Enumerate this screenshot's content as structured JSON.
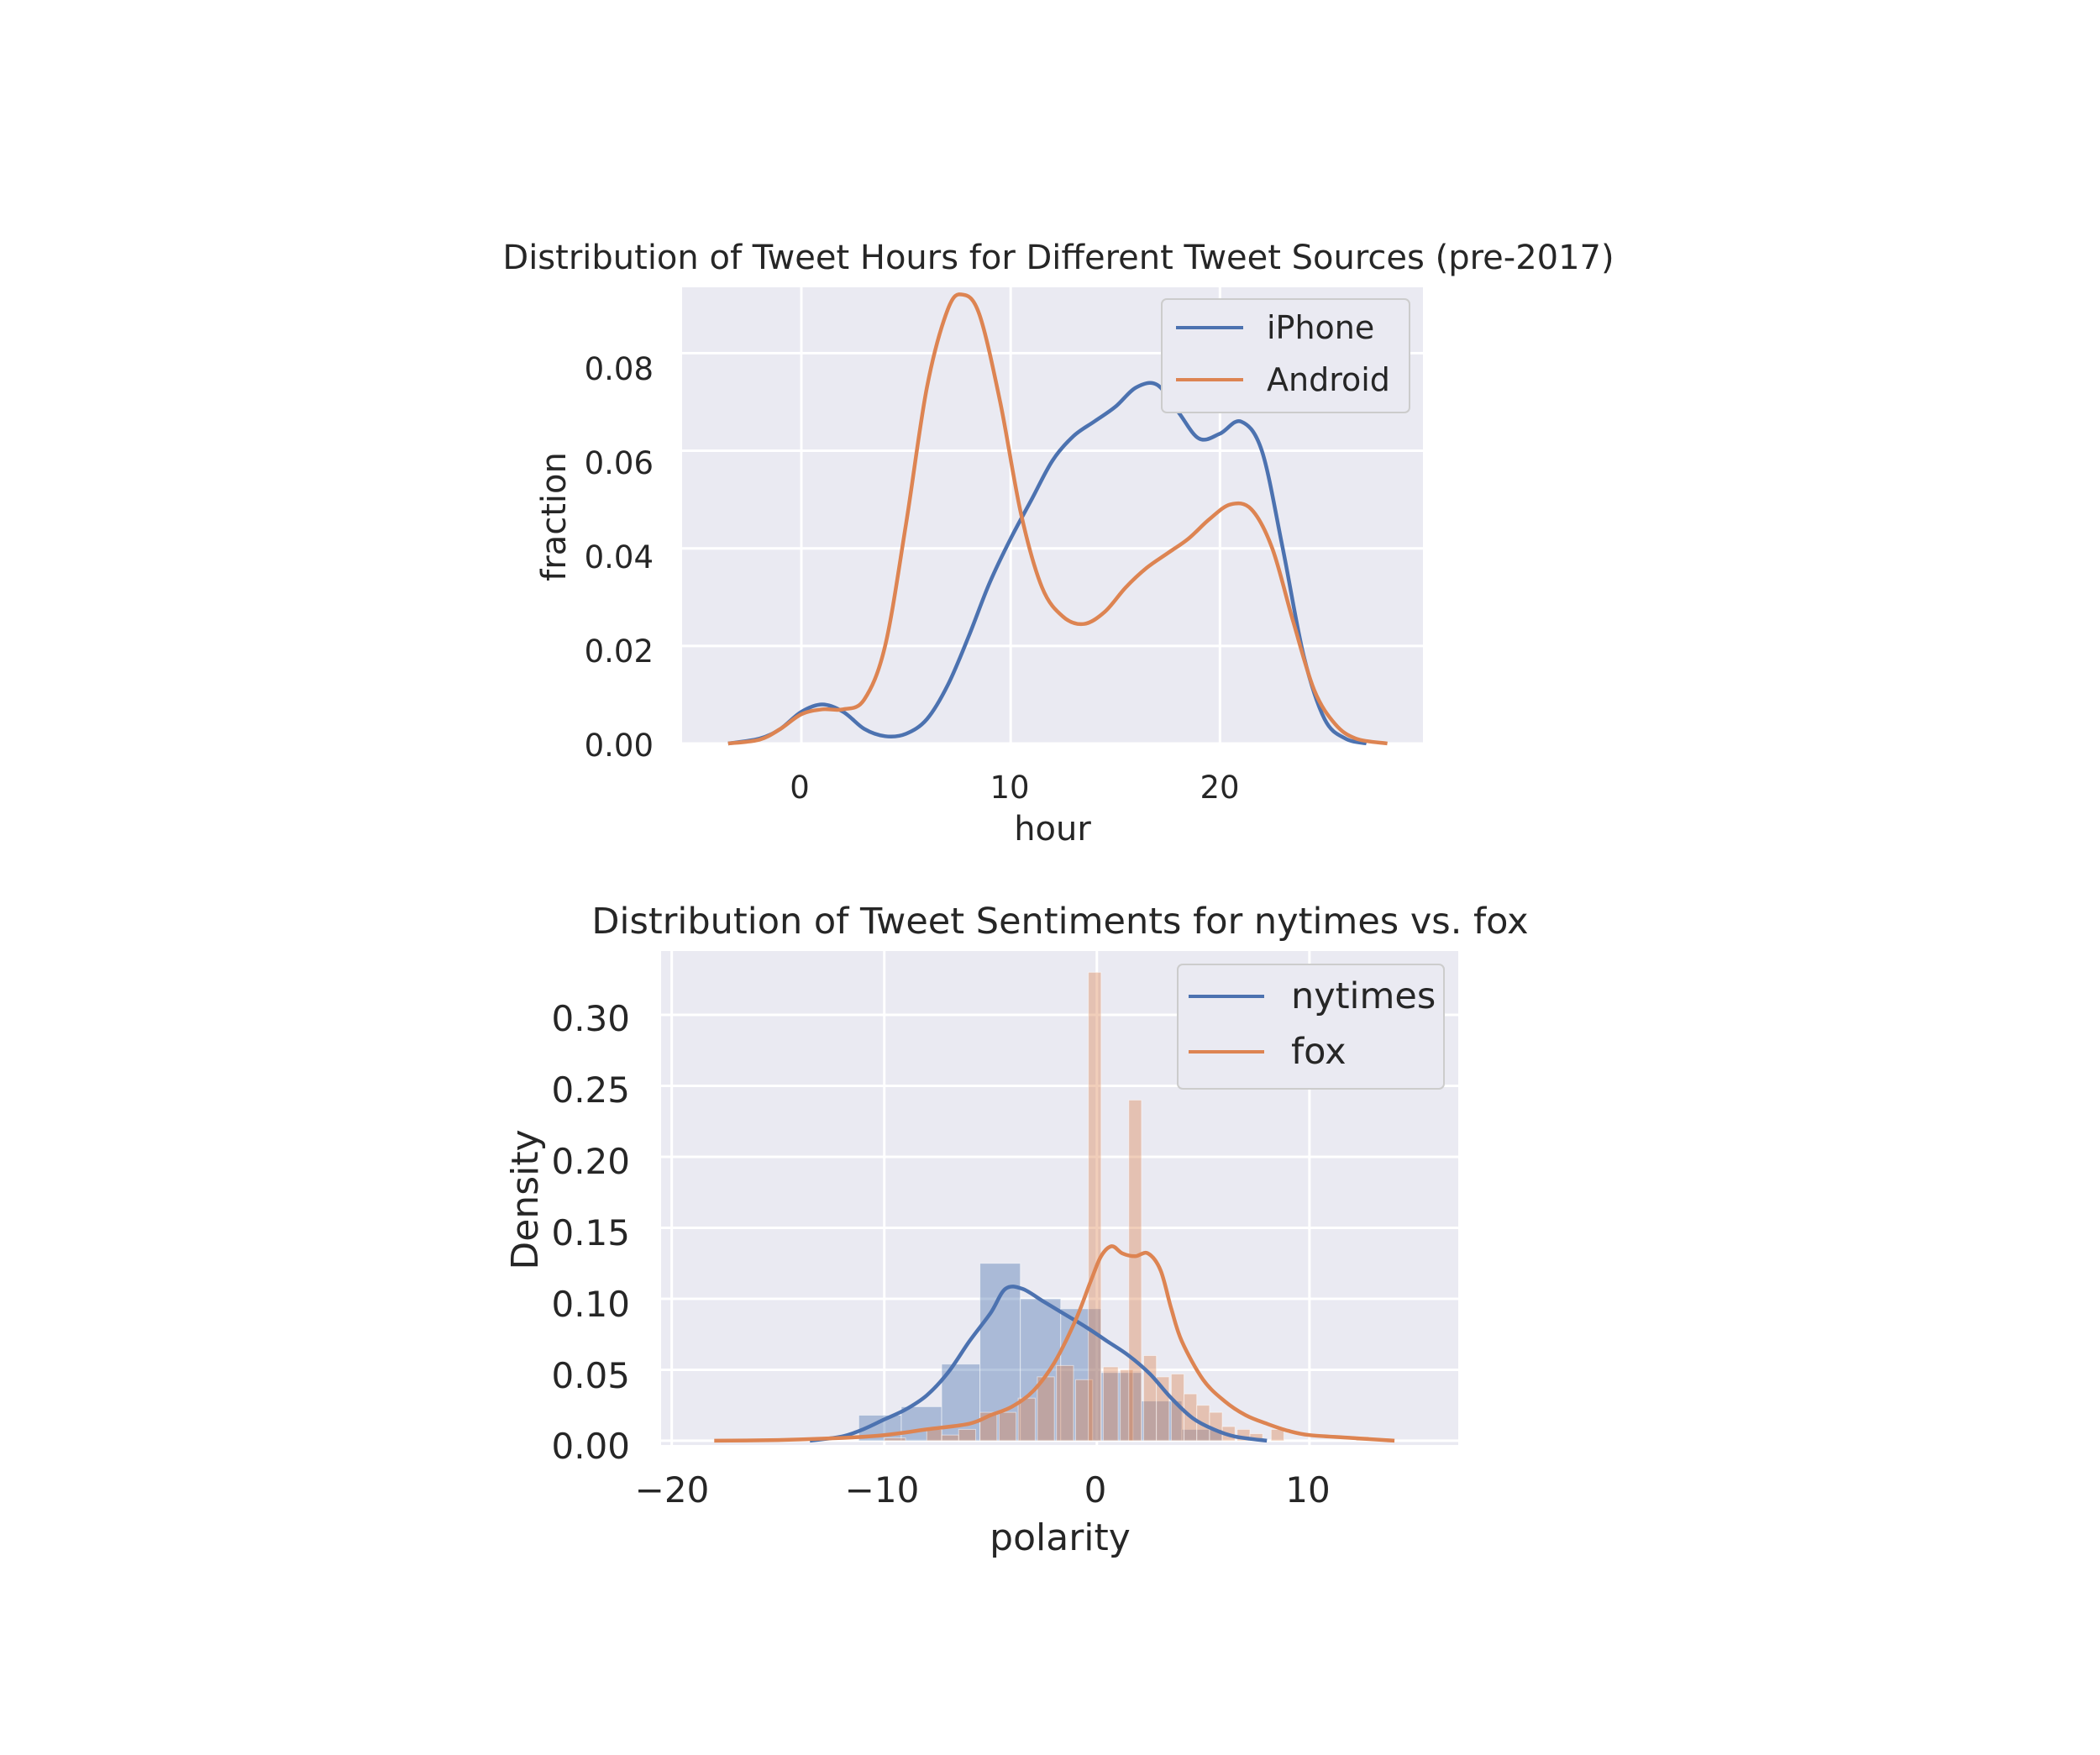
{
  "colors": {
    "background": "#ffffff",
    "axes_face": "#eaeaf2",
    "grid": "#ffffff",
    "blue": "#4c72b0",
    "orange": "#dd8452",
    "text": "#262626"
  },
  "chart_data": [
    {
      "type": "line",
      "title": "Distribution of Tweet Hours for Different Tweet Sources (pre-2017)",
      "xlabel": "hour",
      "ylabel": "fraction",
      "xlim": [
        -5.7,
        29.7
      ],
      "ylim": [
        0,
        0.0935
      ],
      "xticks": [
        0,
        10,
        20
      ],
      "xtick_labels": [
        "0",
        "10",
        "20"
      ],
      "yticks": [
        0,
        0.02,
        0.04,
        0.06,
        0.08
      ],
      "ytick_labels": [
        "0.00",
        "0.02",
        "0.04",
        "0.06",
        "0.08"
      ],
      "grid": true,
      "legend_position": "top-right",
      "series": [
        {
          "name": "iPhone",
          "color": "#4c72b0",
          "points": [
            [
              -3.5,
              0.0
            ],
            [
              -2,
              0.001
            ],
            [
              -1,
              0.003
            ],
            [
              0,
              0.0065
            ],
            [
              1,
              0.008
            ],
            [
              2,
              0.0065
            ],
            [
              3,
              0.003
            ],
            [
              4,
              0.0015
            ],
            [
              5,
              0.002
            ],
            [
              6,
              0.005
            ],
            [
              7,
              0.012
            ],
            [
              8,
              0.022
            ],
            [
              9,
              0.033
            ],
            [
              10,
              0.042
            ],
            [
              11,
              0.05
            ],
            [
              12,
              0.058
            ],
            [
              13,
              0.063
            ],
            [
              14,
              0.066
            ],
            [
              15,
              0.069
            ],
            [
              16,
              0.073
            ],
            [
              17,
              0.0735
            ],
            [
              18,
              0.068
            ],
            [
              19,
              0.0625
            ],
            [
              20,
              0.0635
            ],
            [
              21,
              0.066
            ],
            [
              22,
              0.06
            ],
            [
              23,
              0.04
            ],
            [
              24,
              0.018
            ],
            [
              25,
              0.005
            ],
            [
              26,
              0.001
            ],
            [
              27,
              0.0
            ]
          ]
        },
        {
          "name": "Android",
          "color": "#dd8452",
          "points": [
            [
              -3.5,
              0.0
            ],
            [
              -2,
              0.0008
            ],
            [
              -1,
              0.003
            ],
            [
              0,
              0.006
            ],
            [
              1,
              0.007
            ],
            [
              2,
              0.007
            ],
            [
              3,
              0.009
            ],
            [
              4,
              0.02
            ],
            [
              5,
              0.045
            ],
            [
              6,
              0.073
            ],
            [
              7,
              0.089
            ],
            [
              7.7,
              0.092
            ],
            [
              8.5,
              0.088
            ],
            [
              9.5,
              0.07
            ],
            [
              10.5,
              0.047
            ],
            [
              11.5,
              0.032
            ],
            [
              12.5,
              0.026
            ],
            [
              13.5,
              0.0245
            ],
            [
              14.5,
              0.027
            ],
            [
              15.5,
              0.032
            ],
            [
              16.5,
              0.036
            ],
            [
              17.5,
              0.039
            ],
            [
              18.5,
              0.042
            ],
            [
              19.5,
              0.046
            ],
            [
              20.5,
              0.049
            ],
            [
              21.5,
              0.048
            ],
            [
              22.5,
              0.04
            ],
            [
              23.5,
              0.025
            ],
            [
              24.5,
              0.011
            ],
            [
              25.5,
              0.004
            ],
            [
              26.5,
              0.001
            ],
            [
              28,
              0.0
            ]
          ]
        }
      ]
    },
    {
      "type": "histogram+kde",
      "title": "Distribution of Tweet Sentiments for nytimes vs. fox",
      "xlabel": "polarity",
      "ylabel": "Density",
      "xlim": [
        -20.5,
        17
      ],
      "ylim": [
        -0.003,
        0.345
      ],
      "xticks": [
        -20,
        -10,
        0,
        10
      ],
      "xtick_labels": [
        "−20",
        "−10",
        "0",
        "10"
      ],
      "yticks": [
        0,
        0.05,
        0.1,
        0.15,
        0.2,
        0.25,
        0.3
      ],
      "ytick_labels": [
        "0.00",
        "0.05",
        "0.10",
        "0.15",
        "0.20",
        "0.25",
        "0.30"
      ],
      "grid": true,
      "legend_position": "top-right",
      "histograms": [
        {
          "name": "nytimes",
          "color": "#4c72b0",
          "bars": [
            [
              -11.2,
              -9.2,
              0.018
            ],
            [
              -9.2,
              -7.3,
              0.024
            ],
            [
              -7.3,
              -5.5,
              0.054
            ],
            [
              -5.5,
              -3.6,
              0.125
            ],
            [
              -3.6,
              -1.7,
              0.1
            ],
            [
              -1.7,
              0.2,
              0.093
            ],
            [
              0.2,
              2.1,
              0.048
            ],
            [
              2.1,
              4.0,
              0.028
            ],
            [
              4.0,
              5.9,
              0.008
            ]
          ]
        },
        {
          "name": "fox",
          "color": "#dd8452",
          "bars": [
            [
              -10.0,
              -9.0,
              0.002
            ],
            [
              -8.0,
              -7.3,
              0.008
            ],
            [
              -7.3,
              -6.5,
              0.004
            ],
            [
              -6.5,
              -5.7,
              0.008
            ],
            [
              -5.5,
              -4.7,
              0.02
            ],
            [
              -4.6,
              -3.8,
              0.02
            ],
            [
              -3.7,
              -2.9,
              0.03
            ],
            [
              -2.8,
              -2.0,
              0.045
            ],
            [
              -1.9,
              -1.1,
              0.053
            ],
            [
              -1.0,
              -0.2,
              0.043
            ],
            [
              -0.4,
              0.2,
              0.33
            ],
            [
              0.3,
              1.0,
              0.052
            ],
            [
              1.1,
              1.7,
              0.05
            ],
            [
              1.5,
              2.1,
              0.24
            ],
            [
              2.2,
              2.8,
              0.06
            ],
            [
              2.8,
              3.4,
              0.045
            ],
            [
              3.5,
              4.1,
              0.047
            ],
            [
              4.1,
              4.7,
              0.033
            ],
            [
              4.7,
              5.3,
              0.025
            ],
            [
              5.3,
              5.9,
              0.02
            ],
            [
              5.9,
              6.5,
              0.01
            ],
            [
              6.6,
              7.2,
              0.008
            ],
            [
              7.2,
              7.8,
              0.005
            ],
            [
              8.2,
              8.8,
              0.008
            ],
            [
              12.2,
              12.8,
              0.003
            ]
          ]
        }
      ],
      "series": [
        {
          "name": "nytimes",
          "color": "#4c72b0",
          "points": [
            [
              -13.5,
              0.0
            ],
            [
              -12,
              0.003
            ],
            [
              -11,
              0.008
            ],
            [
              -10,
              0.015
            ],
            [
              -9,
              0.022
            ],
            [
              -8,
              0.032
            ],
            [
              -7,
              0.048
            ],
            [
              -6,
              0.07
            ],
            [
              -5,
              0.09
            ],
            [
              -4.3,
              0.107
            ],
            [
              -3.5,
              0.107
            ],
            [
              -2.5,
              0.098
            ],
            [
              -1.5,
              0.089
            ],
            [
              -0.5,
              0.08
            ],
            [
              0.5,
              0.07
            ],
            [
              1.5,
              0.06
            ],
            [
              2.5,
              0.047
            ],
            [
              3.5,
              0.03
            ],
            [
              4.5,
              0.016
            ],
            [
              5.5,
              0.008
            ],
            [
              6.5,
              0.003
            ],
            [
              8,
              0.0
            ]
          ]
        },
        {
          "name": "fox",
          "color": "#dd8452",
          "points": [
            [
              -18,
              0.0
            ],
            [
              -15,
              0.0005
            ],
            [
              -12,
              0.002
            ],
            [
              -10,
              0.004
            ],
            [
              -8,
              0.008
            ],
            [
              -6,
              0.012
            ],
            [
              -5,
              0.018
            ],
            [
              -4,
              0.024
            ],
            [
              -3,
              0.035
            ],
            [
              -2,
              0.055
            ],
            [
              -1,
              0.085
            ],
            [
              -0.3,
              0.112
            ],
            [
              0.2,
              0.13
            ],
            [
              0.7,
              0.137
            ],
            [
              1.2,
              0.132
            ],
            [
              1.8,
              0.13
            ],
            [
              2.4,
              0.132
            ],
            [
              3,
              0.12
            ],
            [
              3.5,
              0.093
            ],
            [
              4,
              0.07
            ],
            [
              5,
              0.043
            ],
            [
              6,
              0.028
            ],
            [
              7,
              0.018
            ],
            [
              8,
              0.012
            ],
            [
              9,
              0.007
            ],
            [
              10,
              0.004
            ],
            [
              12,
              0.002
            ],
            [
              14,
              0.0
            ]
          ]
        }
      ]
    }
  ]
}
